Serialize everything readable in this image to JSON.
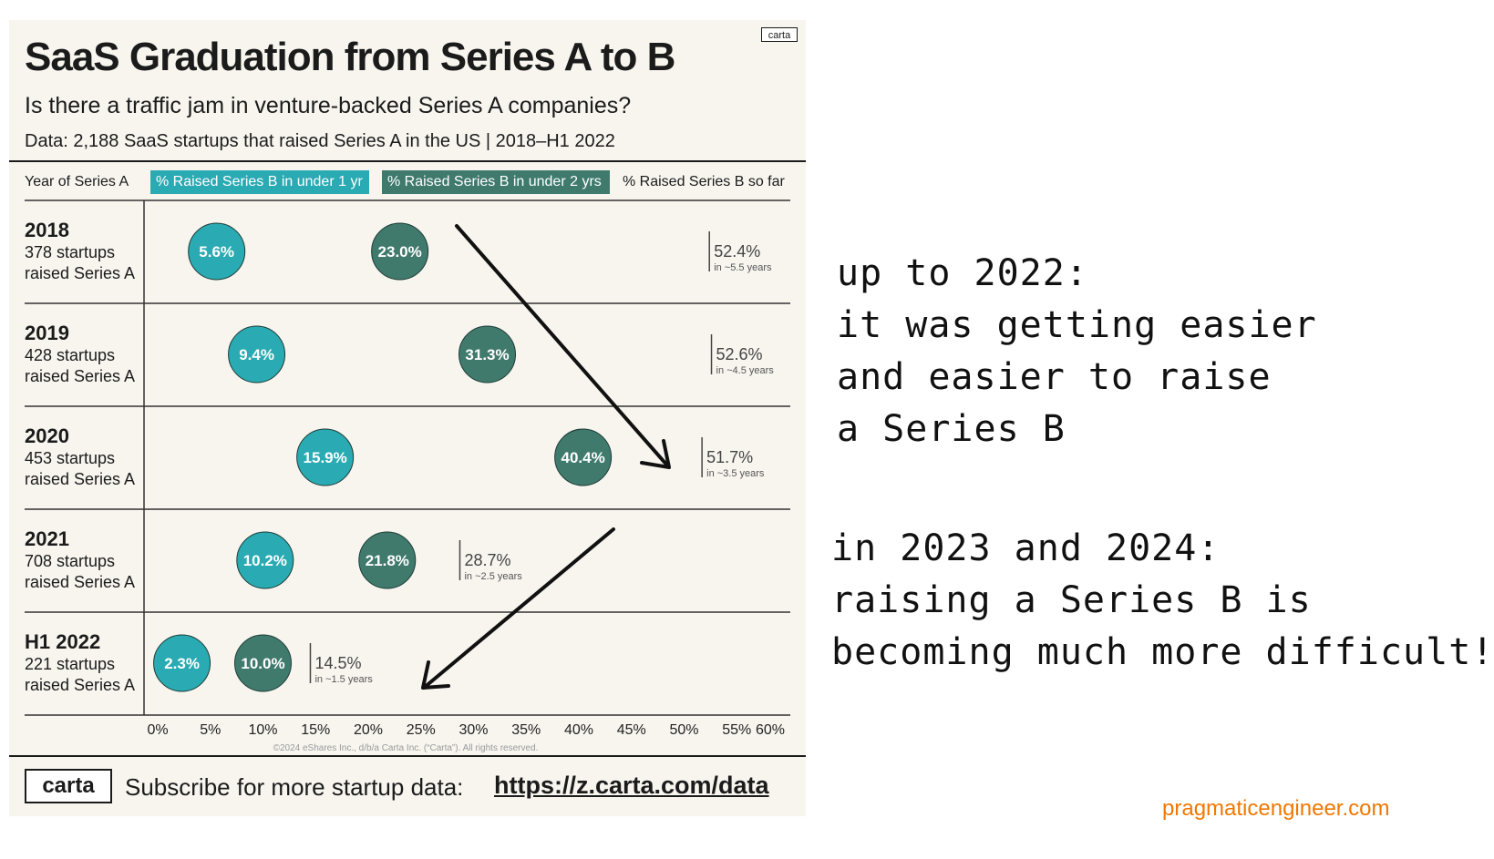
{
  "title": "SaaS Graduation from Series A to B",
  "subtitle": "Is there a traffic jam in venture-backed Series A companies?",
  "dataline": "Data: 2,188 SaaS startups that raised Series A in the US | 2018–H1 2022",
  "logo_small": "carta",
  "header": {
    "year": "Year of Series A",
    "under_1yr": "% Raised Series B in under 1 yr",
    "under_2yr": "% Raised Series B in under 2 yrs",
    "so_far": "% Raised Series B so far"
  },
  "colors": {
    "under_1yr": "#2aaab2",
    "under_2yr": "#3f7a6d",
    "card": "#f8f5ef",
    "watermark": "#f07800"
  },
  "chart_data": {
    "type": "scatter",
    "title": "SaaS Graduation from Series A to B",
    "x_ticks": [
      "0%",
      "5%",
      "10%",
      "15%",
      "20%",
      "25%",
      "30%",
      "35%",
      "40%",
      "45%",
      "50%",
      "55%",
      "60%"
    ],
    "xlim": [
      0,
      60
    ],
    "categories": [
      "2018",
      "2019",
      "2020",
      "2021",
      "H1 2022"
    ],
    "rows": [
      {
        "year": "2018",
        "startups": "378 startups",
        "raised": "raised Series A",
        "under_1yr": 5.6,
        "under_1yr_label": "5.6%",
        "under_2yr": 23.0,
        "under_2yr_label": "23.0%",
        "so_far": 52.4,
        "so_far_label": "52.4%",
        "so_far_note": "in ~5.5 years"
      },
      {
        "year": "2019",
        "startups": "428 startups",
        "raised": "raised Series A",
        "under_1yr": 9.4,
        "under_1yr_label": "9.4%",
        "under_2yr": 31.3,
        "under_2yr_label": "31.3%",
        "so_far": 52.6,
        "so_far_label": "52.6%",
        "so_far_note": "in ~4.5 years"
      },
      {
        "year": "2020",
        "startups": "453 startups",
        "raised": "raised Series A",
        "under_1yr": 15.9,
        "under_1yr_label": "15.9%",
        "under_2yr": 40.4,
        "under_2yr_label": "40.4%",
        "so_far": 51.7,
        "so_far_label": "51.7%",
        "so_far_note": "in ~3.5 years"
      },
      {
        "year": "2021",
        "startups": "708 startups",
        "raised": "raised Series A",
        "under_1yr": 10.2,
        "under_1yr_label": "10.2%",
        "under_2yr": 21.8,
        "under_2yr_label": "21.8%",
        "so_far": 28.7,
        "so_far_label": "28.7%",
        "so_far_note": "in ~2.5 years"
      },
      {
        "year": "H1 2022",
        "startups": "221 startups",
        "raised": "raised Series A",
        "under_1yr": 2.3,
        "under_1yr_label": "2.3%",
        "under_2yr": 10.0,
        "under_2yr_label": "10.0%",
        "so_far": 14.5,
        "so_far_label": "14.5%",
        "so_far_note": "in ~1.5 years"
      }
    ],
    "grid": false
  },
  "copyright": "©2024 eShares Inc., d/b/a Carta Inc. (“Carta”). All rights reserved.",
  "footer": {
    "logo": "carta",
    "text": "Subscribe for more startup data:",
    "link": "https://z.carta.com/data"
  },
  "notes": {
    "note_1": "up to 2022:\nit was getting easier\nand easier to raise\na Series B",
    "note_2": "in 2023 and 2024:\nraising a Series B is\nbecoming much more difficult!"
  },
  "watermark": "pragmaticengineer.com"
}
